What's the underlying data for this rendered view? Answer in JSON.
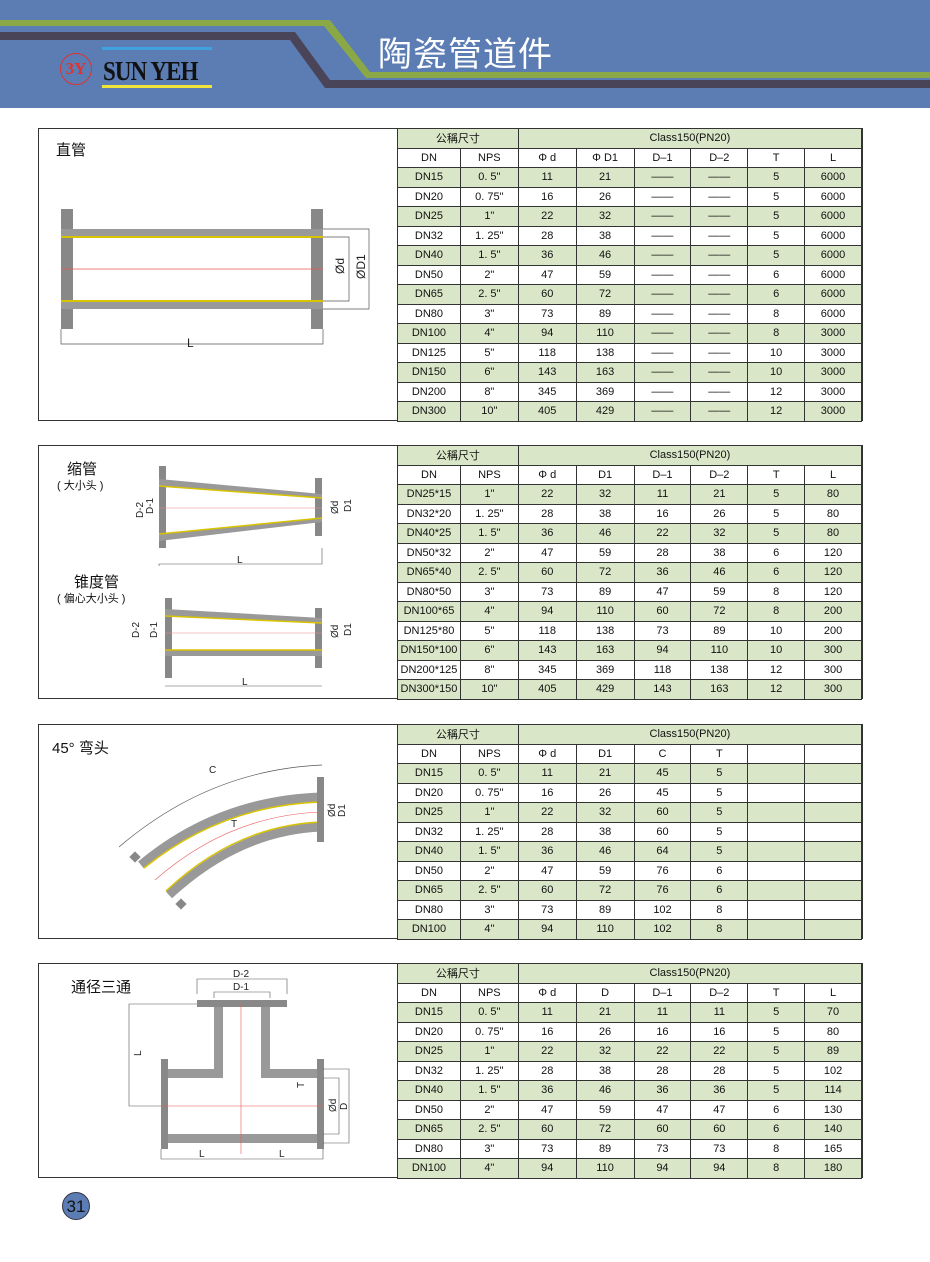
{
  "header": {
    "logo_mark": "3Y",
    "logo_text": "SUN YEH",
    "title": "陶瓷管道件",
    "colors": {
      "banner": "#5b7db3",
      "stripe_green": "#8aa846",
      "stripe_dark": "#4a4458",
      "row_green": "#d9e7c8"
    }
  },
  "page_number": "31",
  "sections": [
    {
      "title": "直管",
      "subtitle": "",
      "labels": {
        "d": "Ød",
        "D1": "ØD1",
        "L": "L"
      },
      "group1": "公稱尺寸",
      "group2": "Class150(PN20)",
      "columns": [
        "DN",
        "NPS",
        "Φ d",
        "Φ D1",
        "D–1",
        "D–2",
        "T",
        "L"
      ],
      "rows": [
        [
          "DN15",
          "0. 5\"",
          "11",
          "21",
          "——",
          "——",
          "5",
          "6000"
        ],
        [
          "DN20",
          "0. 75\"",
          "16",
          "26",
          "——",
          "——",
          "5",
          "6000"
        ],
        [
          "DN25",
          "1\"",
          "22",
          "32",
          "——",
          "——",
          "5",
          "6000"
        ],
        [
          "DN32",
          "1. 25\"",
          "28",
          "38",
          "——",
          "——",
          "5",
          "6000"
        ],
        [
          "DN40",
          "1. 5\"",
          "36",
          "46",
          "——",
          "——",
          "5",
          "6000"
        ],
        [
          "DN50",
          "2\"",
          "47",
          "59",
          "——",
          "——",
          "6",
          "6000"
        ],
        [
          "DN65",
          "2. 5\"",
          "60",
          "72",
          "——",
          "——",
          "6",
          "6000"
        ],
        [
          "DN80",
          "3\"",
          "73",
          "89",
          "——",
          "——",
          "8",
          "6000"
        ],
        [
          "DN100",
          "4\"",
          "94",
          "110",
          "——",
          "——",
          "8",
          "3000"
        ],
        [
          "DN125",
          "5\"",
          "118",
          "138",
          "——",
          "——",
          "10",
          "3000"
        ],
        [
          "DN150",
          "6\"",
          "143",
          "163",
          "——",
          "——",
          "10",
          "3000"
        ],
        [
          "DN200",
          "8\"",
          "345",
          "369",
          "——",
          "——",
          "12",
          "3000"
        ],
        [
          "DN300",
          "10\"",
          "405",
          "429",
          "——",
          "——",
          "12",
          "3000"
        ]
      ]
    },
    {
      "title": "缩管",
      "subtitle": "( 大小头 )",
      "title2": "锥度管",
      "subtitle2": "( 偏心大小头 )",
      "labels": {
        "d": "Ød",
        "D1": "D1",
        "D2": "D-2",
        "Dm1": "D-1",
        "L": "L"
      },
      "group1": "公稱尺寸",
      "group2": "Class150(PN20)",
      "columns": [
        "DN",
        "NPS",
        "Φ d",
        "D1",
        "D–1",
        "D–2",
        "T",
        "L"
      ],
      "rows": [
        [
          "DN25*15",
          "1\"",
          "22",
          "32",
          "11",
          "21",
          "5",
          "80"
        ],
        [
          "DN32*20",
          "1. 25\"",
          "28",
          "38",
          "16",
          "26",
          "5",
          "80"
        ],
        [
          "DN40*25",
          "1. 5\"",
          "36",
          "46",
          "22",
          "32",
          "5",
          "80"
        ],
        [
          "DN50*32",
          "2\"",
          "47",
          "59",
          "28",
          "38",
          "6",
          "120"
        ],
        [
          "DN65*40",
          "2. 5\"",
          "60",
          "72",
          "36",
          "46",
          "6",
          "120"
        ],
        [
          "DN80*50",
          "3\"",
          "73",
          "89",
          "47",
          "59",
          "8",
          "120"
        ],
        [
          "DN100*65",
          "4\"",
          "94",
          "110",
          "60",
          "72",
          "8",
          "200"
        ],
        [
          "DN125*80",
          "5\"",
          "118",
          "138",
          "73",
          "89",
          "10",
          "200"
        ],
        [
          "DN150*100",
          "6\"",
          "143",
          "163",
          "94",
          "110",
          "10",
          "300"
        ],
        [
          "DN200*125",
          "8\"",
          "345",
          "369",
          "118",
          "138",
          "12",
          "300"
        ],
        [
          "DN300*150",
          "10\"",
          "405",
          "429",
          "143",
          "163",
          "12",
          "300"
        ]
      ]
    },
    {
      "title": "45° 弯头",
      "subtitle": "",
      "labels": {
        "d": "Ød",
        "D1": "D1",
        "C": "C",
        "T": "T"
      },
      "group1": "公稱尺寸",
      "group2": "Class150(PN20)",
      "columns": [
        "DN",
        "NPS",
        "Φ d",
        "D1",
        "C",
        "T",
        "",
        ""
      ],
      "rows": [
        [
          "DN15",
          "0. 5\"",
          "11",
          "21",
          "45",
          "5",
          "",
          ""
        ],
        [
          "DN20",
          "0. 75\"",
          "16",
          "26",
          "45",
          "5",
          "",
          ""
        ],
        [
          "DN25",
          "1\"",
          "22",
          "32",
          "60",
          "5",
          "",
          ""
        ],
        [
          "DN32",
          "1. 25\"",
          "28",
          "38",
          "60",
          "5",
          "",
          ""
        ],
        [
          "DN40",
          "1. 5\"",
          "36",
          "46",
          "64",
          "5",
          "",
          ""
        ],
        [
          "DN50",
          "2\"",
          "47",
          "59",
          "76",
          "6",
          "",
          ""
        ],
        [
          "DN65",
          "2. 5\"",
          "60",
          "72",
          "76",
          "6",
          "",
          ""
        ],
        [
          "DN80",
          "3\"",
          "73",
          "89",
          "102",
          "8",
          "",
          ""
        ],
        [
          "DN100",
          "4\"",
          "94",
          "110",
          "102",
          "8",
          "",
          ""
        ]
      ]
    },
    {
      "title": "通径三通",
      "subtitle": "",
      "labels": {
        "d": "Ød",
        "D": "D",
        "D2": "D-2",
        "Dm1": "D-1",
        "L": "L",
        "T": "T"
      },
      "group1": "公稱尺寸",
      "group2": "Class150(PN20)",
      "columns": [
        "DN",
        "NPS",
        "Φ d",
        "D",
        "D–1",
        "D–2",
        "T",
        "L"
      ],
      "rows": [
        [
          "DN15",
          "0. 5\"",
          "11",
          "21",
          "11",
          "11",
          "5",
          "70"
        ],
        [
          "DN20",
          "0. 75\"",
          "16",
          "26",
          "16",
          "16",
          "5",
          "80"
        ],
        [
          "DN25",
          "1\"",
          "22",
          "32",
          "22",
          "22",
          "5",
          "89"
        ],
        [
          "DN32",
          "1. 25\"",
          "28",
          "38",
          "28",
          "28",
          "5",
          "102"
        ],
        [
          "DN40",
          "1. 5\"",
          "36",
          "46",
          "36",
          "36",
          "5",
          "114"
        ],
        [
          "DN50",
          "2\"",
          "47",
          "59",
          "47",
          "47",
          "6",
          "130"
        ],
        [
          "DN65",
          "2. 5\"",
          "60",
          "72",
          "60",
          "60",
          "6",
          "140"
        ],
        [
          "DN80",
          "3\"",
          "73",
          "89",
          "73",
          "73",
          "8",
          "165"
        ],
        [
          "DN100",
          "4\"",
          "94",
          "110",
          "94",
          "94",
          "8",
          "180"
        ]
      ]
    }
  ]
}
